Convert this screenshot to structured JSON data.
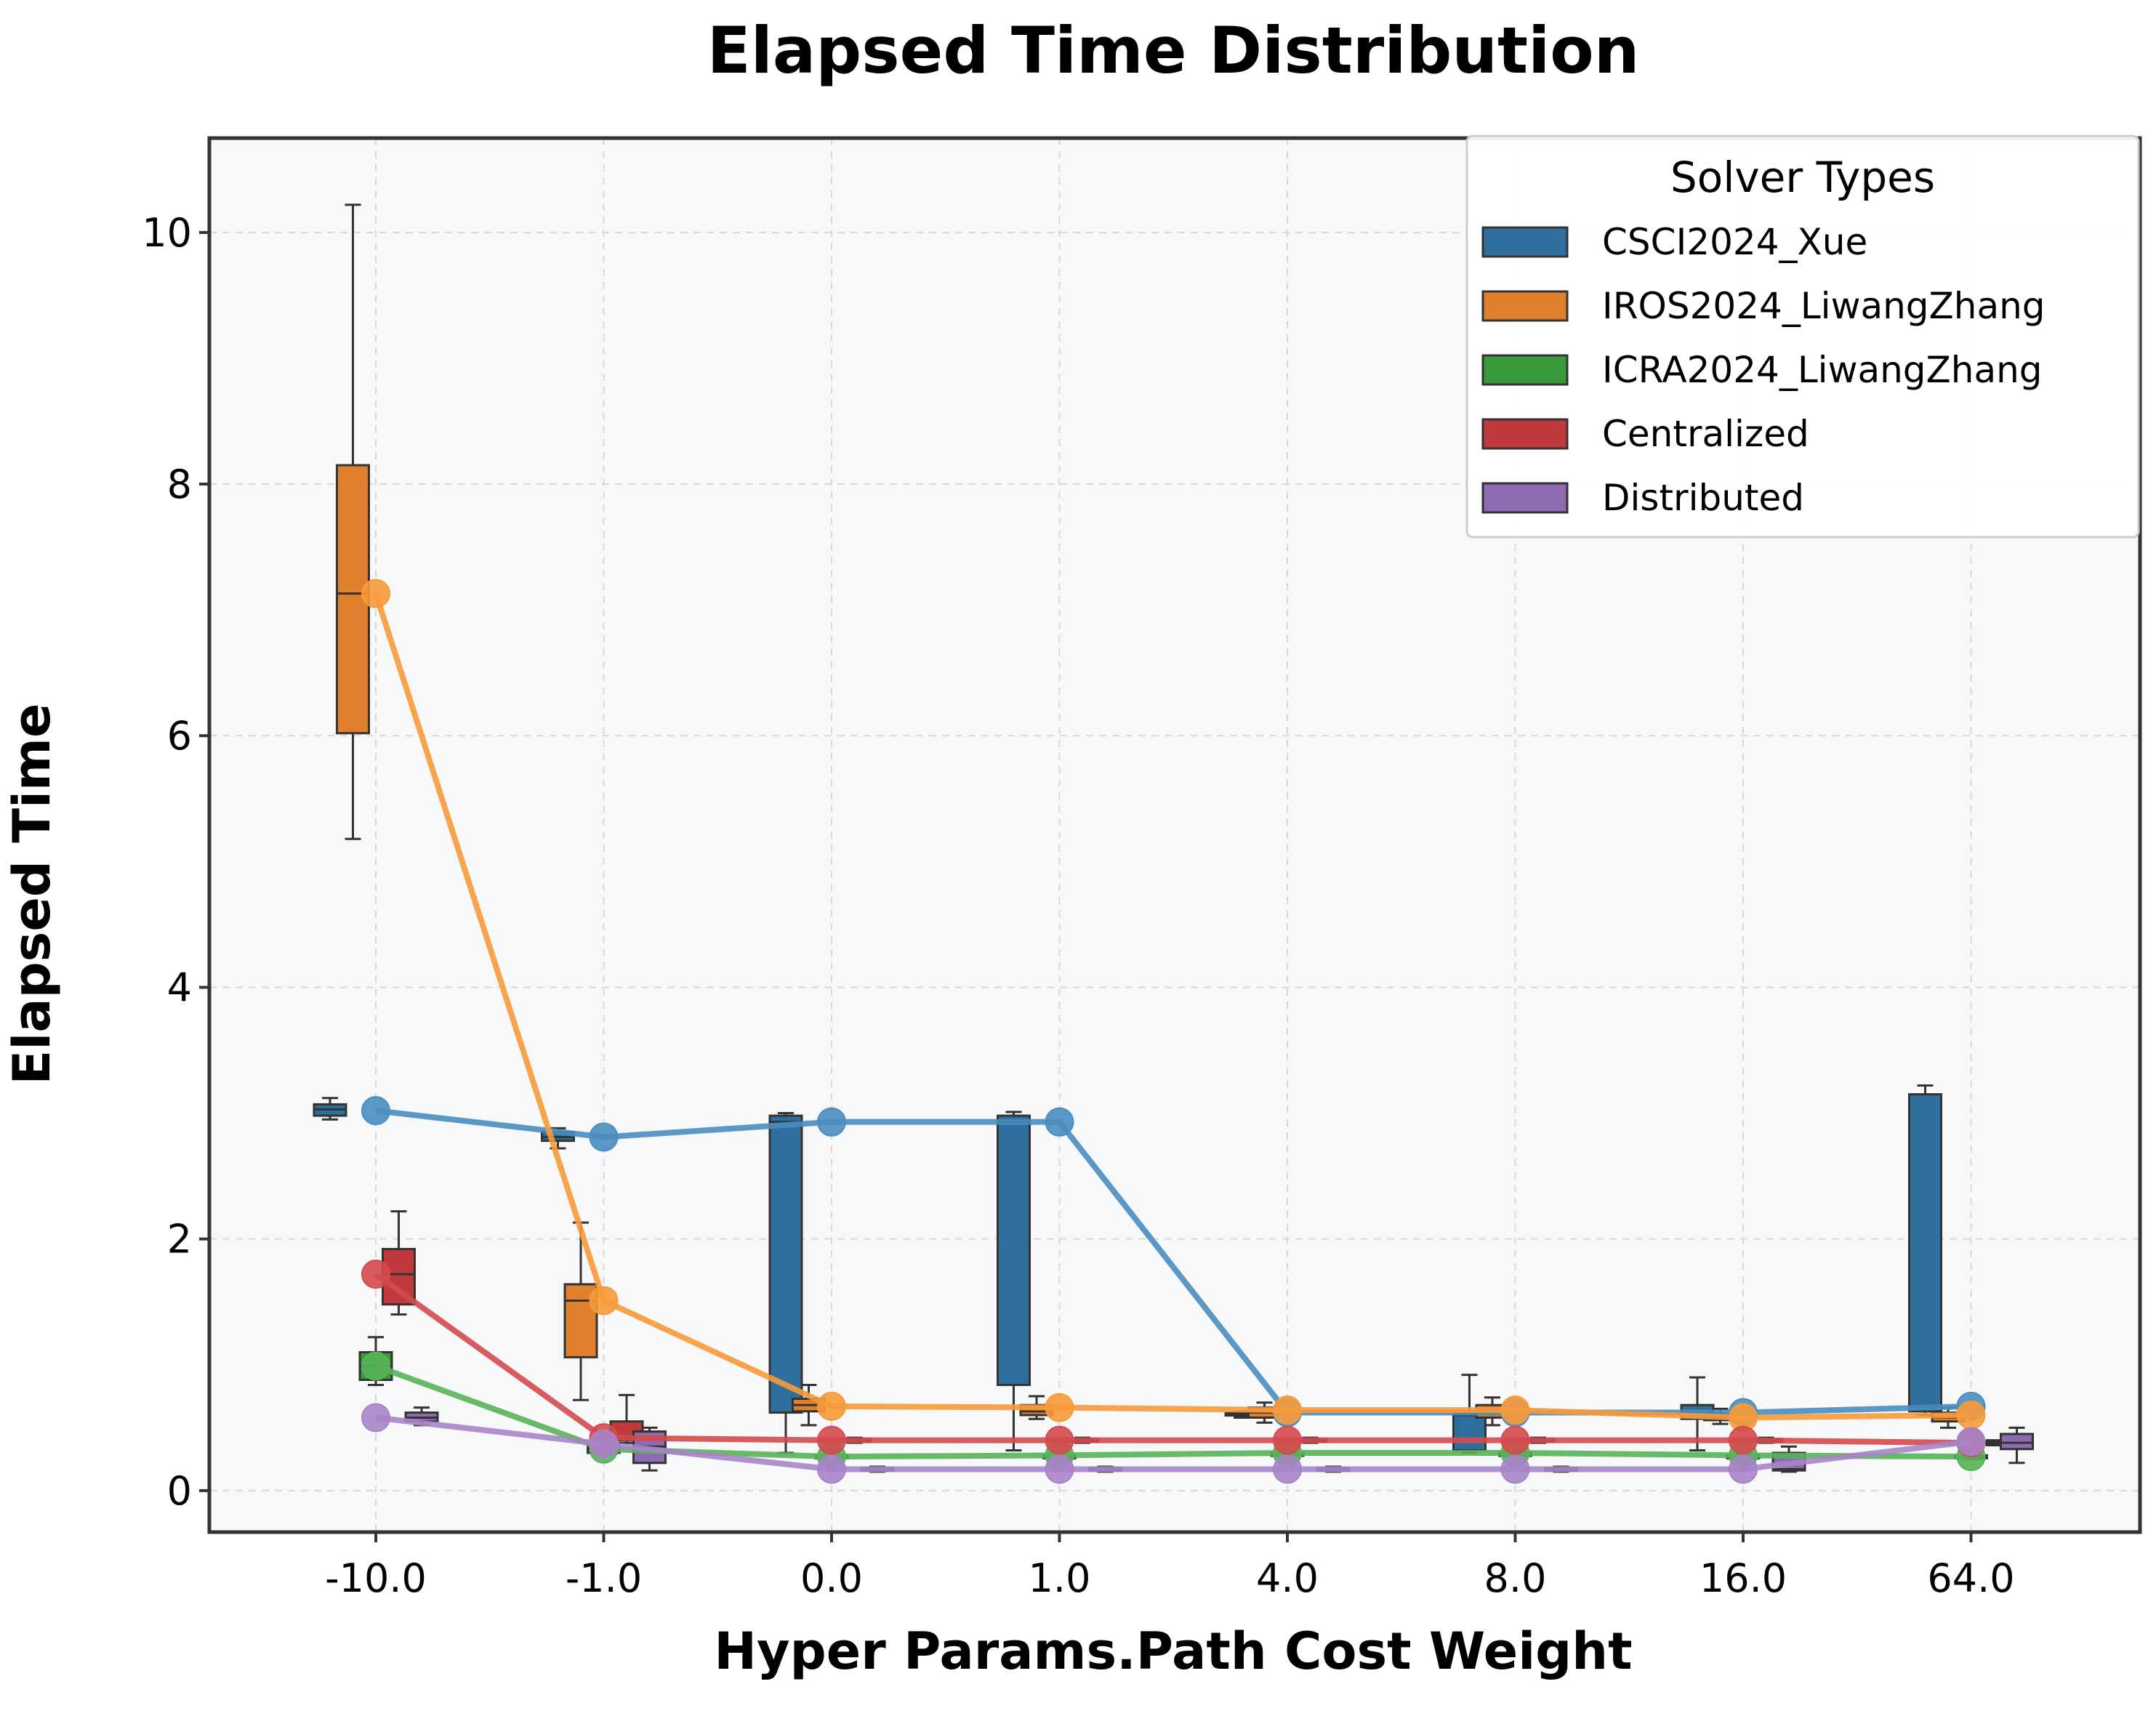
{
  "chart_data": {
    "type": "box",
    "title": "Elapsed Time Distribution",
    "xlabel": "Hyper Params.Path Cost Weight",
    "ylabel": "Elapsed Time",
    "categories": [
      "-10.0",
      "-1.0",
      "0.0",
      "1.0",
      "4.0",
      "8.0",
      "16.0",
      "64.0"
    ],
    "yticks": [
      0,
      2,
      4,
      6,
      8,
      10
    ],
    "ylim": [
      -0.33,
      10.75
    ],
    "grid": true,
    "legend": {
      "title": "Solver Types",
      "position": "top-right"
    },
    "series": [
      {
        "name": "CSCI2024_Xue",
        "color": "#2e6f9e",
        "line_color": "#4a8dc0",
        "box_offset": -2,
        "boxes": [
          {
            "whislo": 2.95,
            "q1": 2.98,
            "med": 3.03,
            "q3": 3.07,
            "whishi": 3.12
          },
          {
            "whislo": 2.72,
            "q1": 2.78,
            "med": 2.81,
            "q3": 2.85,
            "whishi": 2.88
          },
          {
            "whislo": 0.3,
            "q1": 0.62,
            "med": 2.93,
            "q3": 2.98,
            "whishi": 3.0
          },
          {
            "whislo": 0.32,
            "q1": 0.84,
            "med": 2.93,
            "q3": 2.98,
            "whishi": 3.01
          },
          {
            "whislo": 0.58,
            "q1": 0.6,
            "med": 0.61,
            "q3": 0.62,
            "whishi": 0.63
          },
          {
            "whislo": 0.3,
            "q1": 0.32,
            "med": 0.6,
            "q3": 0.62,
            "whishi": 0.92
          },
          {
            "whislo": 0.32,
            "q1": 0.57,
            "med": 0.62,
            "q3": 0.68,
            "whishi": 0.9
          },
          {
            "whislo": 0.6,
            "q1": 0.63,
            "med": 0.67,
            "q3": 3.15,
            "whishi": 3.22
          }
        ],
        "median_line": [
          3.02,
          2.81,
          2.93,
          2.93,
          0.62,
          0.62,
          0.62,
          0.67
        ]
      },
      {
        "name": "IROS2024_LiwangZhang",
        "color": "#e07f2c",
        "line_color": "#f79a3a",
        "box_offset": -1,
        "boxes": [
          {
            "whislo": 5.18,
            "q1": 6.02,
            "med": 7.13,
            "q3": 8.15,
            "whishi": 10.22
          },
          {
            "whislo": 0.72,
            "q1": 1.06,
            "med": 1.51,
            "q3": 1.64,
            "whishi": 2.13
          },
          {
            "whislo": 0.52,
            "q1": 0.63,
            "med": 0.68,
            "q3": 0.73,
            "whishi": 0.84
          },
          {
            "whislo": 0.57,
            "q1": 0.6,
            "med": 0.63,
            "q3": 0.68,
            "whishi": 0.75
          },
          {
            "whislo": 0.54,
            "q1": 0.58,
            "med": 0.62,
            "q3": 0.66,
            "whishi": 0.7
          },
          {
            "whislo": 0.52,
            "q1": 0.58,
            "med": 0.63,
            "q3": 0.68,
            "whishi": 0.74
          },
          {
            "whislo": 0.53,
            "q1": 0.56,
            "med": 0.58,
            "q3": 0.61,
            "whishi": 0.65
          },
          {
            "whislo": 0.5,
            "q1": 0.55,
            "med": 0.58,
            "q3": 0.62,
            "whishi": 0.66
          }
        ],
        "median_line": [
          7.13,
          1.51,
          0.67,
          0.66,
          0.64,
          0.64,
          0.58,
          0.6
        ]
      },
      {
        "name": "ICRA2024_LiwangZhang",
        "color": "#3a9a3a",
        "line_color": "#58b258",
        "box_offset": 0,
        "boxes": [
          {
            "whislo": 0.84,
            "q1": 0.88,
            "med": 0.99,
            "q3": 1.1,
            "whishi": 1.22
          },
          {
            "whislo": 0.28,
            "q1": 0.3,
            "med": 0.33,
            "q3": 0.36,
            "whishi": 0.4
          },
          {
            "whislo": 0.25,
            "q1": 0.26,
            "med": 0.27,
            "q3": 0.28,
            "whishi": 0.29
          },
          {
            "whislo": 0.25,
            "q1": 0.26,
            "med": 0.27,
            "q3": 0.28,
            "whishi": 0.29
          },
          {
            "whislo": 0.27,
            "q1": 0.28,
            "med": 0.29,
            "q3": 0.3,
            "whishi": 0.31
          },
          {
            "whislo": 0.27,
            "q1": 0.28,
            "med": 0.29,
            "q3": 0.3,
            "whishi": 0.31
          },
          {
            "whislo": 0.25,
            "q1": 0.26,
            "med": 0.27,
            "q3": 0.28,
            "whishi": 0.29
          },
          {
            "whislo": 0.25,
            "q1": 0.26,
            "med": 0.27,
            "q3": 0.28,
            "whishi": 0.29
          }
        ],
        "median_line": [
          0.99,
          0.33,
          0.27,
          0.28,
          0.3,
          0.3,
          0.28,
          0.27
        ]
      },
      {
        "name": "Centralized",
        "color": "#c0393c",
        "line_color": "#d44a4d",
        "box_offset": 1,
        "boxes": [
          {
            "whislo": 1.4,
            "q1": 1.48,
            "med": 1.72,
            "q3": 1.92,
            "whishi": 2.22
          },
          {
            "whislo": 0.38,
            "q1": 0.4,
            "med": 0.42,
            "q3": 0.55,
            "whishi": 0.76
          },
          {
            "whislo": 0.38,
            "q1": 0.39,
            "med": 0.4,
            "q3": 0.41,
            "whishi": 0.42
          },
          {
            "whislo": 0.38,
            "q1": 0.39,
            "med": 0.4,
            "q3": 0.41,
            "whishi": 0.42
          },
          {
            "whislo": 0.38,
            "q1": 0.39,
            "med": 0.4,
            "q3": 0.41,
            "whishi": 0.42
          },
          {
            "whislo": 0.38,
            "q1": 0.39,
            "med": 0.4,
            "q3": 0.41,
            "whishi": 0.42
          },
          {
            "whislo": 0.38,
            "q1": 0.39,
            "med": 0.4,
            "q3": 0.41,
            "whishi": 0.42
          },
          {
            "whislo": 0.36,
            "q1": 0.37,
            "med": 0.38,
            "q3": 0.39,
            "whishi": 0.4
          }
        ],
        "median_line": [
          1.72,
          0.42,
          0.4,
          0.4,
          0.4,
          0.4,
          0.4,
          0.38
        ]
      },
      {
        "name": "Distributed",
        "color": "#8c6bb0",
        "line_color": "#a784c8",
        "box_offset": 2,
        "boxes": [
          {
            "whislo": 0.52,
            "q1": 0.55,
            "med": 0.58,
            "q3": 0.62,
            "whishi": 0.66
          },
          {
            "whislo": 0.16,
            "q1": 0.22,
            "med": 0.35,
            "q3": 0.47,
            "whishi": 0.5
          },
          {
            "whislo": 0.15,
            "q1": 0.16,
            "med": 0.17,
            "q3": 0.18,
            "whishi": 0.19
          },
          {
            "whislo": 0.15,
            "q1": 0.16,
            "med": 0.17,
            "q3": 0.18,
            "whishi": 0.19
          },
          {
            "whislo": 0.15,
            "q1": 0.16,
            "med": 0.17,
            "q3": 0.18,
            "whishi": 0.19
          },
          {
            "whislo": 0.15,
            "q1": 0.16,
            "med": 0.17,
            "q3": 0.18,
            "whishi": 0.19
          },
          {
            "whislo": 0.15,
            "q1": 0.16,
            "med": 0.17,
            "q3": 0.3,
            "whishi": 0.35
          },
          {
            "whislo": 0.22,
            "q1": 0.33,
            "med": 0.38,
            "q3": 0.45,
            "whishi": 0.5
          }
        ],
        "median_line": [
          0.58,
          0.37,
          0.17,
          0.17,
          0.17,
          0.17,
          0.17,
          0.39
        ]
      }
    ]
  }
}
